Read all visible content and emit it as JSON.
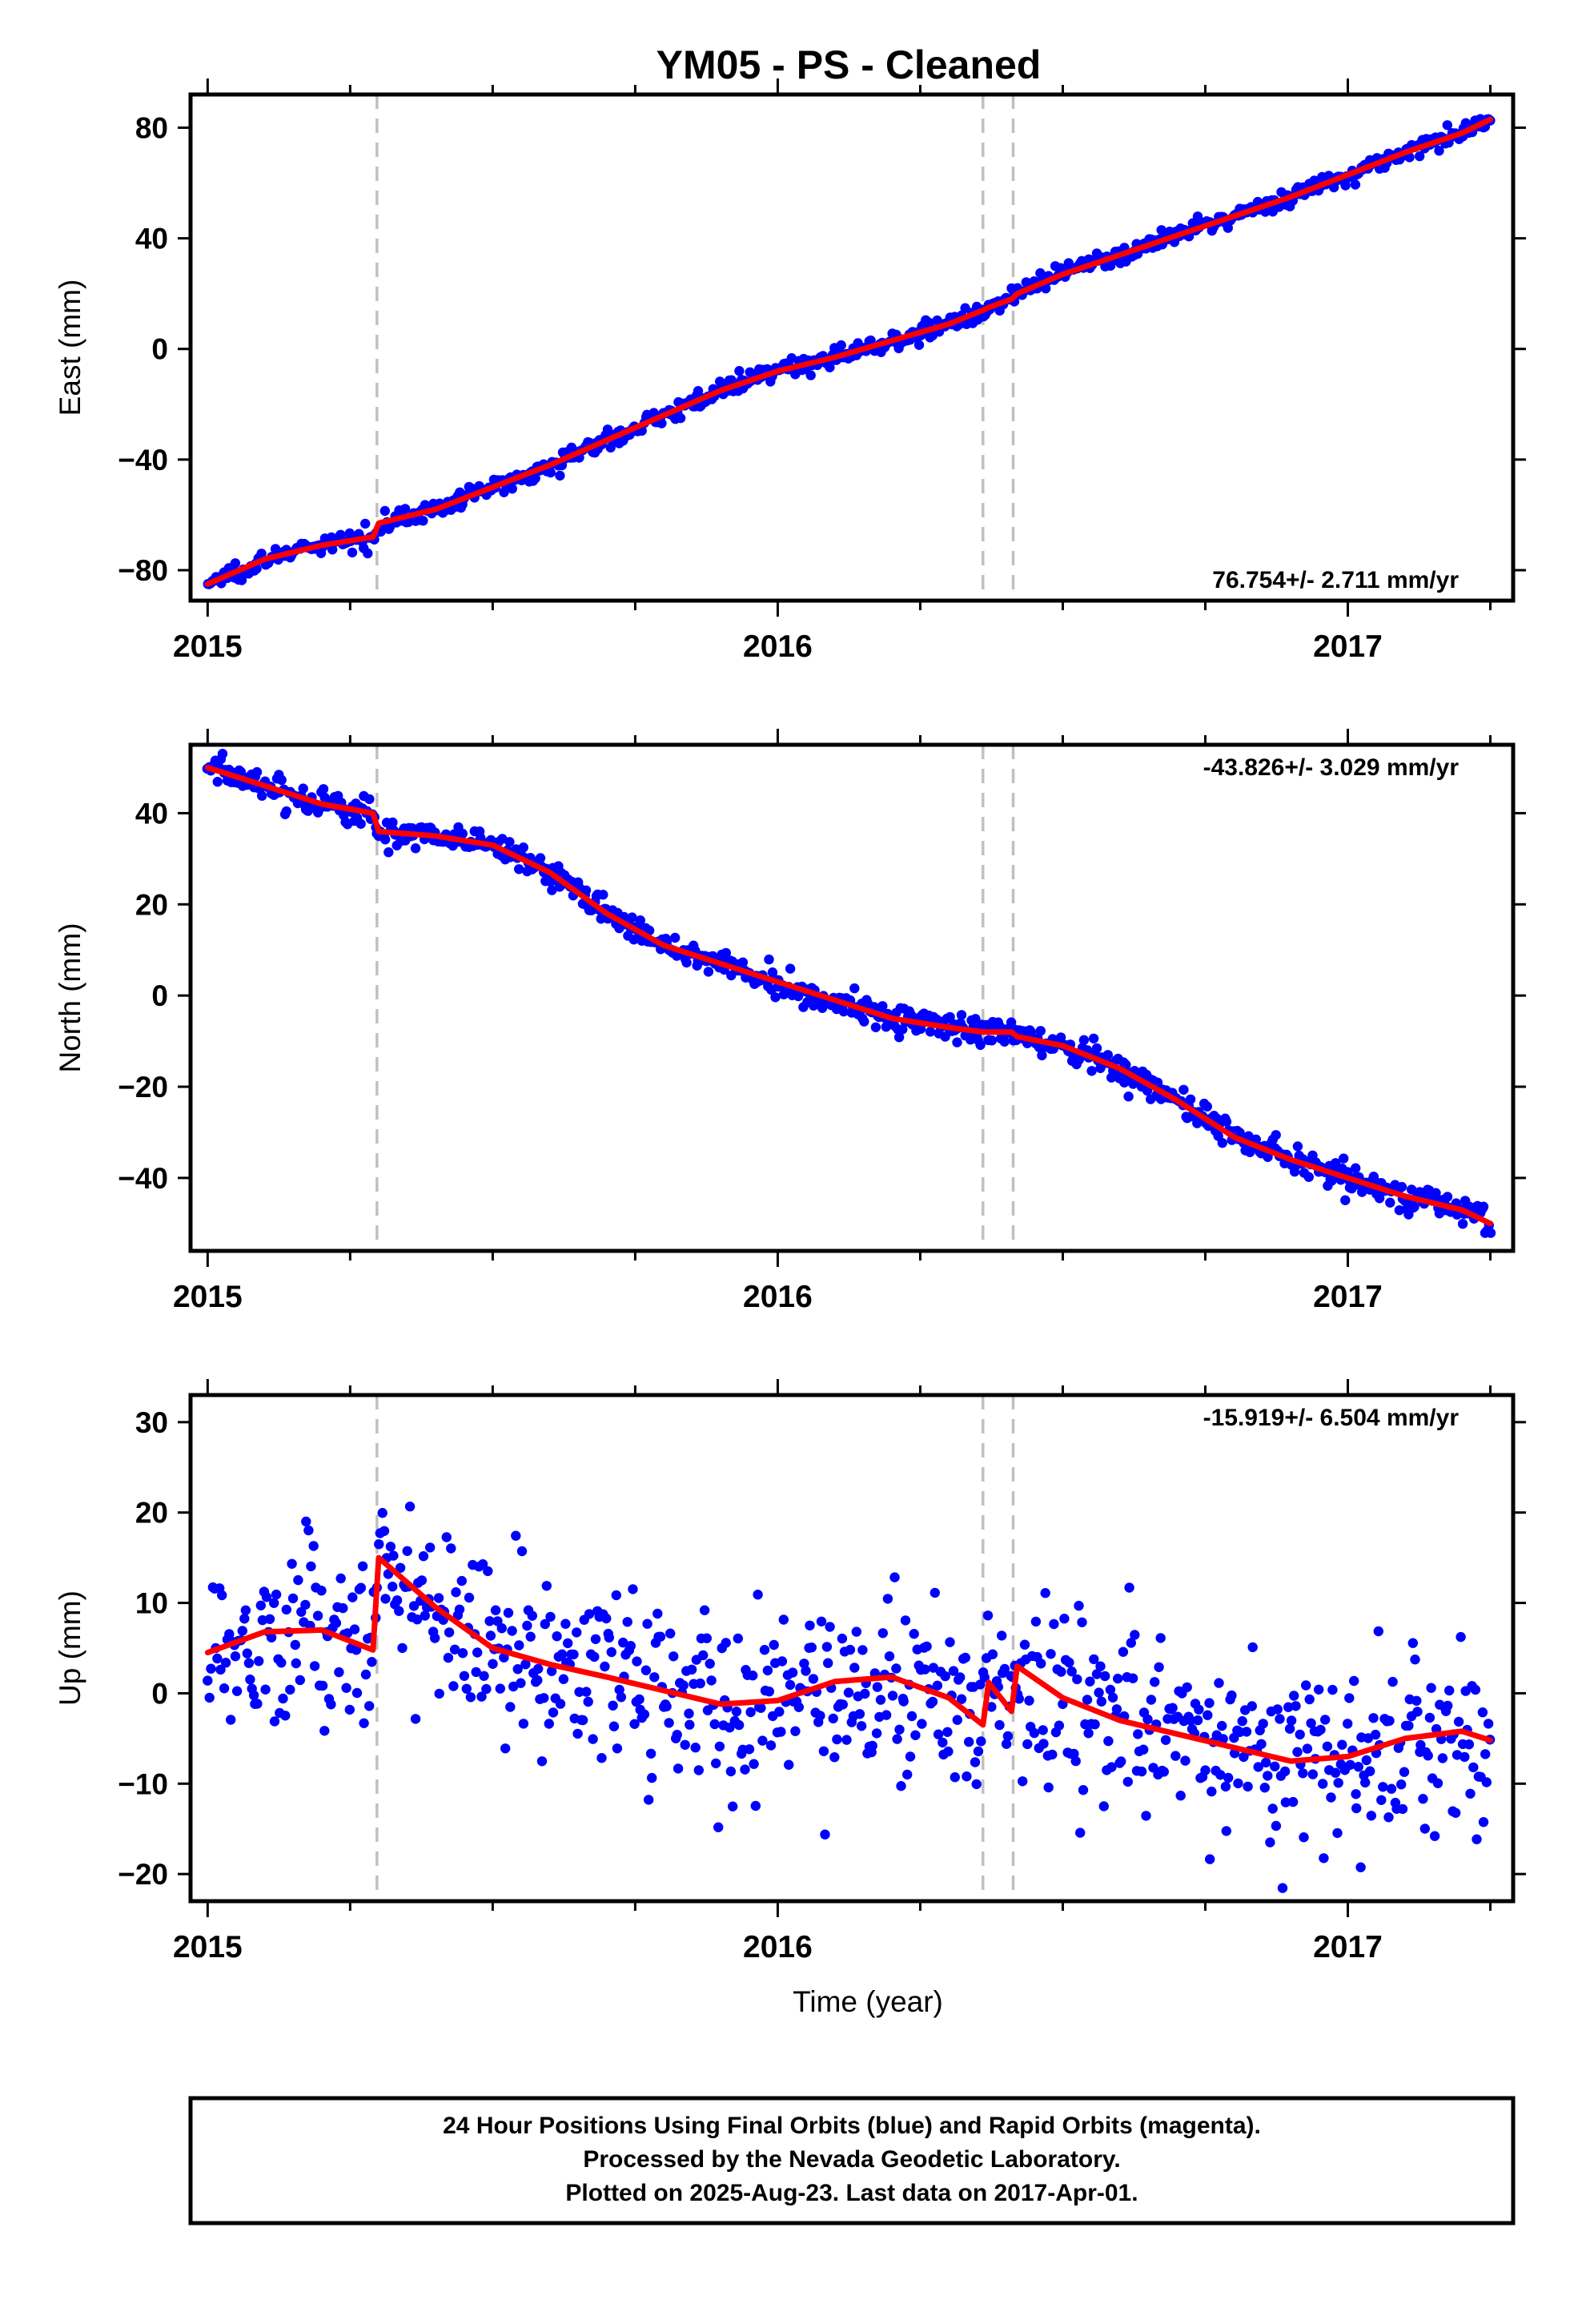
{
  "chart_data": [
    {
      "type": "scatter",
      "title": "YM05  - PS - Cleaned",
      "ylabel": "East (mm)",
      "xlabel": "",
      "xlim": [
        2014.97,
        2017.29
      ],
      "ylim": [
        -91,
        92
      ],
      "yticks": [
        80,
        40,
        0,
        -40,
        -80
      ],
      "xticks": [
        2015,
        2016,
        2017
      ],
      "x_minor_step": 0.25,
      "rate_text": "76.754+/- 2.711 mm/yr",
      "rate_position": "bottom-right",
      "grid": false,
      "breaks": [
        2015.297,
        2016.36,
        2016.413
      ],
      "series": [
        {
          "kind": "points",
          "color": "#0000ff",
          "x": [
            2015.0,
            2015.1,
            2015.2,
            2015.29,
            2015.3,
            2015.4,
            2015.5,
            2015.6,
            2015.7,
            2015.8,
            2015.9,
            2016.0,
            2016.1,
            2016.2,
            2016.3,
            2016.36,
            2016.37,
            2016.41,
            2016.42,
            2016.5,
            2016.6,
            2016.7,
            2016.8,
            2016.9,
            2017.0,
            2017.1,
            2017.2,
            2017.25
          ],
          "y": [
            -85,
            -76,
            -71,
            -68,
            -63,
            -58,
            -50,
            -42,
            -33,
            -24,
            -15,
            -8,
            -3,
            3,
            9,
            14,
            15,
            18,
            20,
            27,
            34,
            41,
            48,
            55,
            63,
            71,
            78,
            83
          ]
        },
        {
          "kind": "model",
          "color": "#ff0000",
          "x": [
            2015.0,
            2015.1,
            2015.2,
            2015.29,
            2015.3,
            2015.4,
            2015.5,
            2015.6,
            2015.7,
            2015.8,
            2015.9,
            2016.0,
            2016.1,
            2016.2,
            2016.3,
            2016.36,
            2016.37,
            2016.41,
            2016.42,
            2016.5,
            2016.6,
            2016.7,
            2016.8,
            2016.9,
            2017.0,
            2017.1,
            2017.2,
            2017.25
          ],
          "y": [
            -85,
            -76,
            -71,
            -68,
            -63,
            -58,
            -50,
            -42,
            -33,
            -24,
            -15,
            -8,
            -3,
            3,
            9,
            14,
            15,
            18,
            20,
            27,
            34,
            41,
            48,
            55,
            63,
            71,
            78,
            83
          ]
        }
      ]
    },
    {
      "type": "scatter",
      "title": "",
      "ylabel": "North (mm)",
      "xlabel": "",
      "xlim": [
        2014.97,
        2017.29
      ],
      "ylim": [
        -56,
        55
      ],
      "yticks": [
        40,
        20,
        0,
        -20,
        -40
      ],
      "xticks": [
        2015,
        2016,
        2017
      ],
      "x_minor_step": 0.25,
      "rate_text": "-43.826+/- 3.029 mm/yr",
      "rate_position": "top-right",
      "grid": false,
      "breaks": [
        2015.297,
        2016.36,
        2016.413
      ],
      "series": [
        {
          "kind": "points",
          "color": "#0000ff",
          "x": [
            2015.0,
            2015.1,
            2015.2,
            2015.29,
            2015.3,
            2015.4,
            2015.5,
            2015.6,
            2015.7,
            2015.8,
            2015.9,
            2016.0,
            2016.1,
            2016.2,
            2016.3,
            2016.36,
            2016.37,
            2016.41,
            2016.42,
            2016.5,
            2016.6,
            2016.7,
            2016.8,
            2016.9,
            2017.0,
            2017.1,
            2017.2,
            2017.25
          ],
          "y": [
            50,
            46,
            42,
            40,
            36,
            35,
            33,
            27,
            18,
            11,
            7,
            3,
            -1,
            -5,
            -7,
            -8,
            -8,
            -8,
            -9,
            -11,
            -16,
            -23,
            -31,
            -36,
            -40,
            -44,
            -47,
            -50
          ]
        },
        {
          "kind": "model",
          "color": "#ff0000",
          "x": [
            2015.0,
            2015.1,
            2015.2,
            2015.29,
            2015.3,
            2015.4,
            2015.5,
            2015.6,
            2015.7,
            2015.8,
            2015.9,
            2016.0,
            2016.1,
            2016.2,
            2016.3,
            2016.36,
            2016.37,
            2016.41,
            2016.42,
            2016.5,
            2016.6,
            2016.7,
            2016.8,
            2016.9,
            2017.0,
            2017.1,
            2017.2,
            2017.25
          ],
          "y": [
            50,
            46,
            42,
            40,
            36,
            35,
            33,
            27,
            18,
            11,
            7,
            3,
            -1,
            -5,
            -7,
            -8,
            -8,
            -8,
            -9,
            -11,
            -16,
            -23,
            -31,
            -36,
            -40,
            -44,
            -47,
            -50
          ]
        }
      ]
    },
    {
      "type": "scatter",
      "title": "",
      "ylabel": "Up (mm)",
      "xlabel": "Time (year)",
      "xlim": [
        2014.97,
        2017.29
      ],
      "ylim": [
        -23,
        33
      ],
      "yticks": [
        30,
        20,
        10,
        0,
        -10,
        -20
      ],
      "xticks": [
        2015,
        2016,
        2017
      ],
      "x_minor_step": 0.25,
      "rate_text": "-15.919+/- 6.504 mm/yr",
      "rate_position": "top-right",
      "grid": false,
      "breaks": [
        2015.297,
        2016.36,
        2016.413
      ],
      "series": [
        {
          "kind": "points",
          "color": "#0000ff",
          "x": [
            2015.0,
            2015.1,
            2015.2,
            2015.29,
            2015.3,
            2015.4,
            2015.5,
            2015.6,
            2015.7,
            2015.8,
            2015.9,
            2016.0,
            2016.1,
            2016.2,
            2016.3,
            2016.36,
            2016.37,
            2016.41,
            2016.42,
            2016.5,
            2016.6,
            2016.7,
            2016.8,
            2016.9,
            2017.0,
            2017.1,
            2017.2,
            2017.25
          ],
          "y": [
            4.5,
            6.8,
            7.0,
            4.8,
            15.0,
            9.5,
            5.0,
            3.2,
            1.8,
            0.3,
            -1.2,
            -0.8,
            1.3,
            1.8,
            -0.5,
            -3.5,
            1.2,
            -2.0,
            3.0,
            -0.5,
            -3.0,
            -4.5,
            -6.0,
            -7.5,
            -7.0,
            -5.0,
            -4.2,
            -5.2
          ]
        },
        {
          "kind": "model",
          "color": "#ff0000",
          "x": [
            2015.0,
            2015.1,
            2015.2,
            2015.29,
            2015.3,
            2015.4,
            2015.5,
            2015.6,
            2015.7,
            2015.8,
            2015.9,
            2016.0,
            2016.1,
            2016.2,
            2016.3,
            2016.36,
            2016.37,
            2016.41,
            2016.42,
            2016.5,
            2016.6,
            2016.7,
            2016.8,
            2016.9,
            2017.0,
            2017.1,
            2017.2,
            2017.25
          ],
          "y": [
            4.5,
            6.8,
            7.0,
            4.8,
            15.0,
            9.5,
            5.0,
            3.2,
            1.8,
            0.3,
            -1.2,
            -0.8,
            1.3,
            1.8,
            -0.5,
            -3.5,
            1.2,
            -2.0,
            3.0,
            -0.5,
            -3.0,
            -4.5,
            -6.0,
            -7.5,
            -7.0,
            -5.0,
            -4.2,
            -5.2
          ]
        }
      ]
    }
  ],
  "footer": {
    "line1": "24 Hour Positions Using Final Orbits (blue) and Rapid Orbits (magenta).",
    "line2": "Processed by the Nevada Geodetic Laboratory.",
    "line3": "Plotted on 2025-Aug-23. Last data on 2017-Apr-01."
  },
  "colors": {
    "points": "#0000ff",
    "model": "#ff0000",
    "breaks": "#c0c0c0",
    "frame": "#000000"
  }
}
